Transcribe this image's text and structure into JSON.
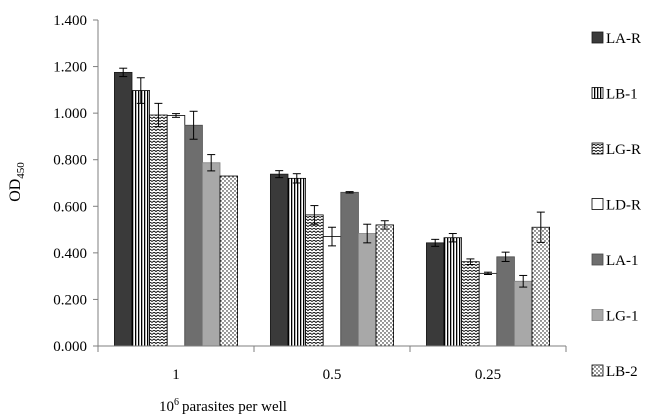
{
  "chart_data": {
    "type": "bar",
    "title": "",
    "xlabel": "parasites per well",
    "xlabel_sup": "6",
    "xlabel_prefix": "10",
    "ylabel": "OD",
    "ylabel_sub": "450",
    "ylim": [
      0,
      1.4
    ],
    "yticks": [
      "0.000",
      "0.200",
      "0.400",
      "0.600",
      "0.800",
      "1.000",
      "1.200",
      "1.400"
    ],
    "categories": [
      "1",
      "0.5",
      "0.25"
    ],
    "grid": false,
    "legend_position": "right",
    "error_bars": true,
    "series": [
      {
        "name": "LA-R",
        "pattern": "solid-dark",
        "values": [
          1.175,
          0.738,
          0.443
        ],
        "errors": [
          0.018,
          0.015,
          0.015
        ]
      },
      {
        "name": "LB-1",
        "pattern": "vertical-lines",
        "values": [
          1.097,
          0.72,
          0.465
        ],
        "errors": [
          0.055,
          0.02,
          0.018
        ]
      },
      {
        "name": "LG-R",
        "pattern": "zigzag",
        "values": [
          0.992,
          0.563,
          0.362
        ],
        "errors": [
          0.05,
          0.04,
          0.012
        ]
      },
      {
        "name": "LD-R",
        "pattern": "white",
        "values": [
          0.99,
          0.47,
          0.312
        ],
        "errors": [
          0.008,
          0.04,
          0.005
        ]
      },
      {
        "name": "LA-1",
        "pattern": "solid-medium",
        "values": [
          0.948,
          0.66,
          0.383
        ],
        "errors": [
          0.06,
          0.003,
          0.02
        ]
      },
      {
        "name": "LG-1",
        "pattern": "solid-light",
        "values": [
          0.787,
          0.483,
          0.278
        ],
        "errors": [
          0.035,
          0.04,
          0.025
        ]
      },
      {
        "name": "LB-2",
        "pattern": "dotted",
        "values": [
          0.73,
          0.52,
          0.51
        ],
        "errors": [
          0.0,
          0.018,
          0.065
        ]
      }
    ]
  }
}
